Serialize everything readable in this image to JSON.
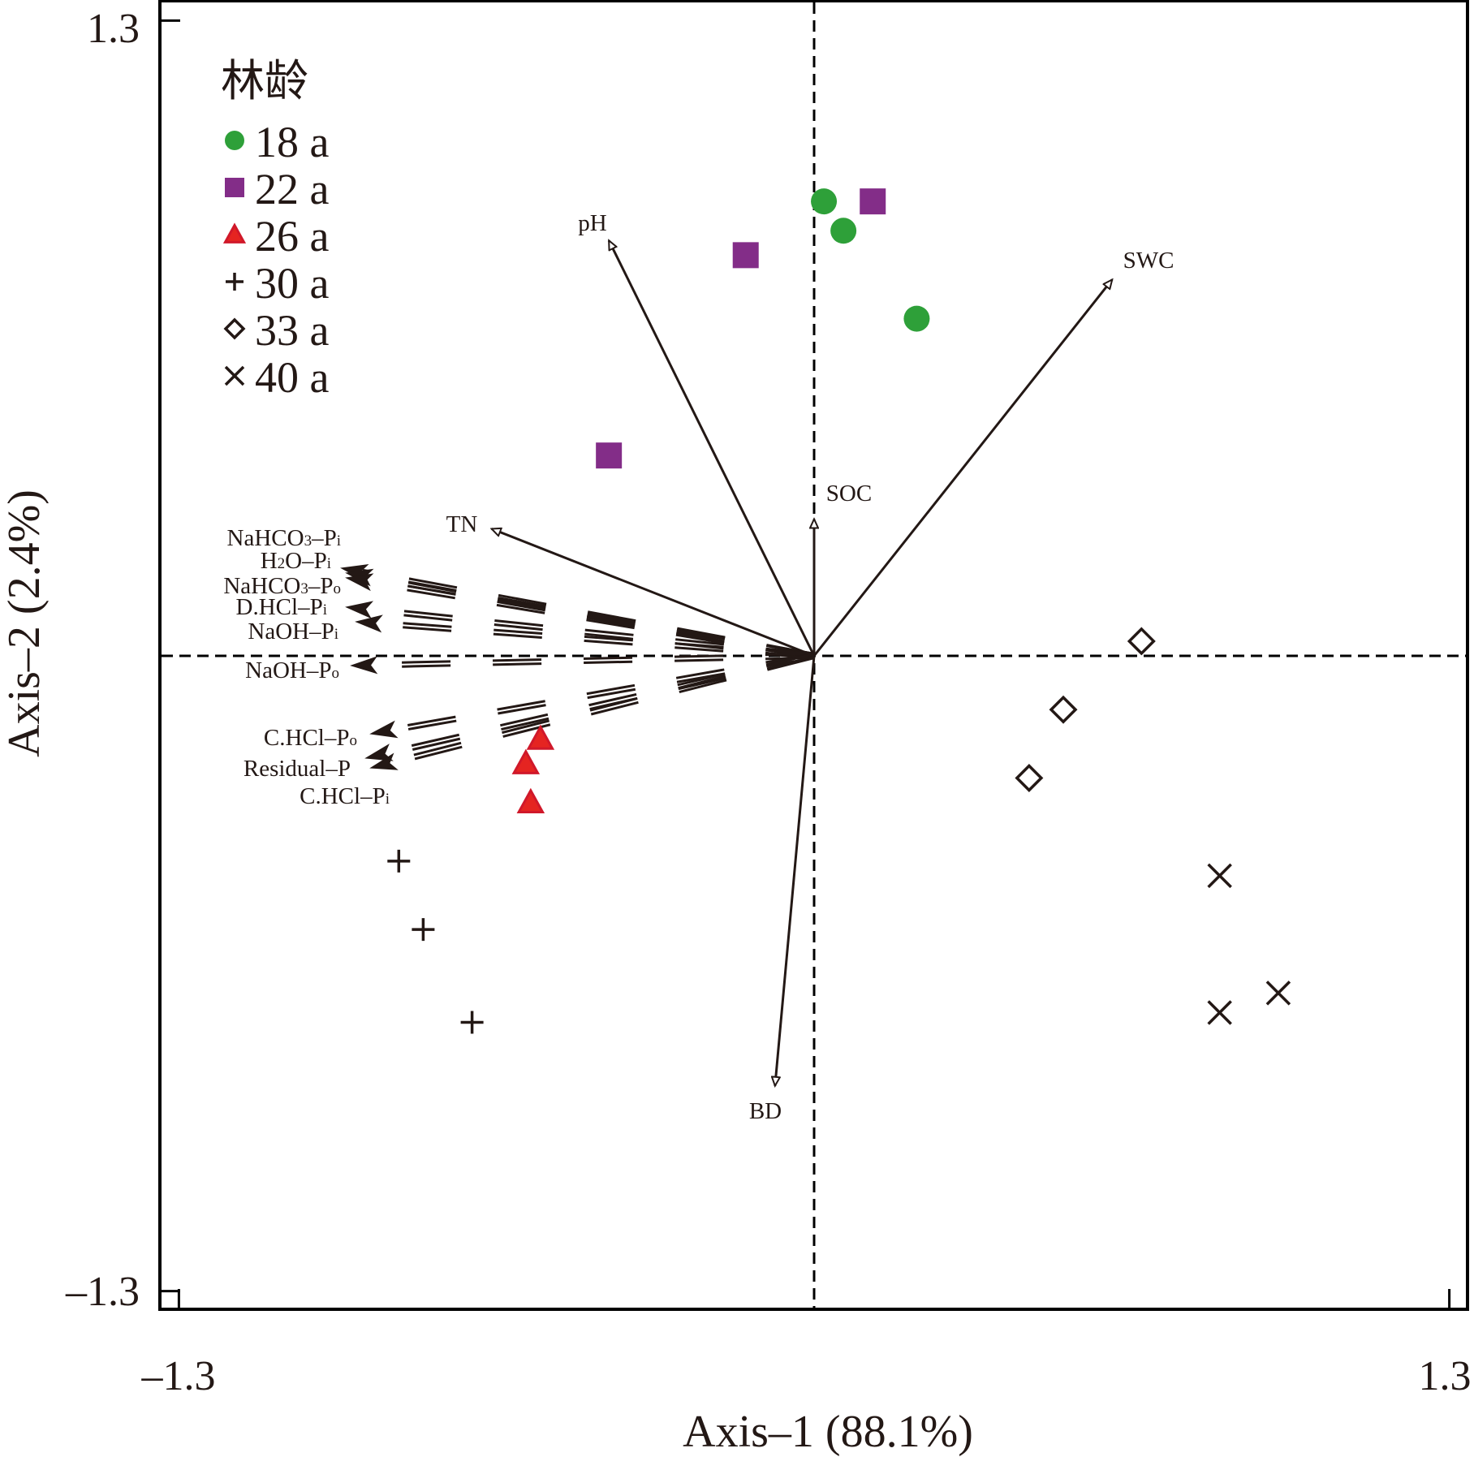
{
  "chart_data": {
    "type": "scatter",
    "subtype": "ordination-biplot",
    "title": "",
    "xlabel": "Axis–1 (88.1%)",
    "ylabel": "Axis–2 (2.4%)",
    "xlim": [
      -1.3,
      1.3
    ],
    "ylim": [
      -1.3,
      1.3
    ],
    "x_ticks": [
      {
        "value": -1.3,
        "label": "–1.3"
      },
      {
        "value": 1.3,
        "label": "1.3"
      }
    ],
    "y_ticks": [
      {
        "value": 1.3,
        "label": "1.3"
      },
      {
        "value": -1.3,
        "label": "–1.3"
      }
    ],
    "grid": false,
    "zero_lines": "dashed",
    "legend": {
      "title": "林龄",
      "placement": "top-left",
      "entries": [
        {
          "label": "18 a",
          "marker": "circle",
          "color": "#2ea039"
        },
        {
          "label": "22 a",
          "marker": "square",
          "color": "#832d88"
        },
        {
          "label": "26 a",
          "marker": "triangle",
          "color": "#e01f26"
        },
        {
          "label": "30 a",
          "marker": "plus",
          "color": "#231815"
        },
        {
          "label": "33 a",
          "marker": "diamond",
          "color": "#231815"
        },
        {
          "label": "40 a",
          "marker": "cross",
          "color": "#231815"
        }
      ]
    },
    "series": [
      {
        "name": "18 a",
        "marker": "circle",
        "color": "#2ea039",
        "points": [
          {
            "x": 0.02,
            "y": 0.93
          },
          {
            "x": 0.06,
            "y": 0.87
          },
          {
            "x": 0.21,
            "y": 0.69
          }
        ]
      },
      {
        "name": "22 a",
        "marker": "square",
        "color": "#832d88",
        "points": [
          {
            "x": 0.12,
            "y": 0.93
          },
          {
            "x": -0.14,
            "y": 0.82
          },
          {
            "x": -0.42,
            "y": 0.41
          }
        ]
      },
      {
        "name": "26 a",
        "marker": "triangle",
        "color": "#e01f26",
        "points": [
          {
            "x": -0.56,
            "y": -0.17
          },
          {
            "x": -0.59,
            "y": -0.22
          },
          {
            "x": -0.58,
            "y": -0.3
          }
        ]
      },
      {
        "name": "30 a",
        "marker": "plus",
        "color": "#231815",
        "points": [
          {
            "x": -0.85,
            "y": -0.42
          },
          {
            "x": -0.8,
            "y": -0.56
          },
          {
            "x": -0.7,
            "y": -0.75
          }
        ]
      },
      {
        "name": "33 a",
        "marker": "diamond",
        "color": "#231815",
        "points": [
          {
            "x": 0.67,
            "y": 0.03
          },
          {
            "x": 0.51,
            "y": -0.11
          },
          {
            "x": 0.44,
            "y": -0.25
          }
        ]
      },
      {
        "name": "40 a",
        "marker": "cross",
        "color": "#231815",
        "points": [
          {
            "x": 0.83,
            "y": -0.45
          },
          {
            "x": 0.95,
            "y": -0.69
          },
          {
            "x": 0.83,
            "y": -0.73
          }
        ]
      }
    ],
    "explanatory_vectors": [
      {
        "name": "pH",
        "x": -0.42,
        "y": 0.85,
        "style": "solid-open-head"
      },
      {
        "name": "SWC",
        "x": 0.61,
        "y": 0.77,
        "style": "solid-open-head"
      },
      {
        "name": "SOC",
        "x": 0.0,
        "y": 0.28,
        "style": "solid-open-head"
      },
      {
        "name": "TN",
        "x": -0.66,
        "y": 0.26,
        "style": "solid-open-head"
      },
      {
        "name": "BD",
        "x": -0.08,
        "y": -0.88,
        "style": "solid-open-head"
      }
    ],
    "response_vectors": [
      {
        "name": "NaHCO3–Pi",
        "base": "NaHCO",
        "sub": "3",
        "suffix": "–P",
        "sub2": "i",
        "x": -0.97,
        "y": 0.18
      },
      {
        "name": "H2O–Pi",
        "base": "H",
        "sub": "2",
        "suffix": "O–P",
        "sub2": "i",
        "x": -0.96,
        "y": 0.17
      },
      {
        "name": "NaHCO3–Po",
        "base": "NaHCO",
        "sub": "3",
        "suffix": "–P",
        "sub2": "o",
        "x": -0.96,
        "y": 0.16
      },
      {
        "name": "D.HCl–Pi",
        "base": "D.HCl–P",
        "sub": "i",
        "suffix": "",
        "sub2": "",
        "x": -0.96,
        "y": 0.1
      },
      {
        "name": "NaOH–Pi",
        "base": "NaOH–P",
        "sub": "i",
        "suffix": "",
        "sub2": "",
        "x": -0.94,
        "y": 0.07
      },
      {
        "name": "NaOH–Po",
        "base": "NaOH–P",
        "sub": "o",
        "suffix": "",
        "sub2": "",
        "x": -0.95,
        "y": -0.02
      },
      {
        "name": "C.HCl–Po",
        "base": "C.HCl–P",
        "sub": "o",
        "suffix": "",
        "sub2": "",
        "x": -0.91,
        "y": -0.16
      },
      {
        "name": "Residual–P",
        "base": "Residual–P",
        "sub": "",
        "suffix": "",
        "sub2": "",
        "x": -0.92,
        "y": -0.21
      },
      {
        "name": "C.HCl–Pi",
        "base": "C.HCl–P",
        "sub": "i",
        "suffix": "",
        "sub2": "",
        "x": -0.91,
        "y": -0.23
      }
    ]
  }
}
